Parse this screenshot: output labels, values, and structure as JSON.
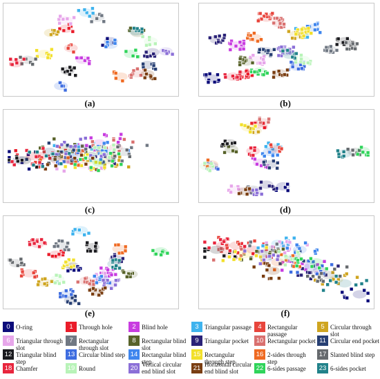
{
  "panels": [
    {
      "label": "(a)",
      "id": "a"
    },
    {
      "label": "(b)",
      "id": "b"
    },
    {
      "label": "(c)",
      "id": "c"
    },
    {
      "label": "(d)",
      "id": "d"
    },
    {
      "label": "(e)",
      "id": "e"
    },
    {
      "label": "(f)",
      "id": "f"
    }
  ],
  "legend": [
    {
      "id": "0",
      "label": "O-ring",
      "color": "#0c0c7a"
    },
    {
      "id": "1",
      "label": "Through hole",
      "color": "#ea1c2a"
    },
    {
      "id": "2",
      "label": "Blind hole",
      "color": "#c83ce0"
    },
    {
      "id": "3",
      "label": "Triangular passage",
      "color": "#3fb3ee"
    },
    {
      "id": "4",
      "label": "Rectangular passage",
      "color": "#e8453c"
    },
    {
      "id": "5",
      "label": "Circular through slot",
      "color": "#cfa520"
    },
    {
      "id": "6",
      "label": "Triangular through slot",
      "color": "#e7a6ea"
    },
    {
      "id": "7",
      "label": "Rectangular through slot",
      "color": "#707883"
    },
    {
      "id": "8",
      "label": "Rectangular blind slot",
      "color": "#58632a"
    },
    {
      "id": "9",
      "label": "Triangular pocket",
      "color": "#2a2277"
    },
    {
      "id": "10",
      "label": "Rectangular pocket",
      "color": "#d9706f"
    },
    {
      "id": "11",
      "label": "Circular end pocket",
      "color": "#273f73"
    },
    {
      "id": "12",
      "label": "Triangular blind step",
      "color": "#1b1b1f"
    },
    {
      "id": "13",
      "label": "Circular blind step",
      "color": "#3e6de0"
    },
    {
      "id": "14",
      "label": "Rectangular blind step",
      "color": "#3f86ee"
    },
    {
      "id": "15",
      "label": "Rectangular through step",
      "color": "#f2e02a"
    },
    {
      "id": "16",
      "label": "2-sides through step",
      "color": "#ef6a22"
    },
    {
      "id": "17",
      "label": "Slanted blind step",
      "color": "#666a6e"
    },
    {
      "id": "18",
      "label": "Chamfer",
      "color": "#e8253d"
    },
    {
      "id": "19",
      "label": "Round",
      "color": "#b8f3b8"
    },
    {
      "id": "20",
      "label": "Vertical  circular end blind slot",
      "color": "#8b6fd7"
    },
    {
      "id": "21",
      "label": "Horizontal circular end blind slot",
      "color": "#7a3e12"
    },
    {
      "id": "22",
      "label": "6-sides passage",
      "color": "#2fd45a"
    },
    {
      "id": "23",
      "label": "6-sides pocket",
      "color": "#21828a"
    }
  ],
  "chart_data": {
    "type": "scatter",
    "description_of_panels": "six 2-D embedding scatter plots, points colored by class 0–23",
    "panels": [
      {
        "label": "(a)",
        "clusters": [
          {
            "cls": 0,
            "x": 0.62,
            "y": 0.4,
            "n": 6
          },
          {
            "cls": 1,
            "x": 0.35,
            "y": 0.25,
            "n": 6
          },
          {
            "cls": 2,
            "x": 0.45,
            "y": 0.62,
            "n": 7
          },
          {
            "cls": 3,
            "x": 0.47,
            "y": 0.06,
            "n": 6
          },
          {
            "cls": 4,
            "x": 0.38,
            "y": 0.48,
            "n": 6
          },
          {
            "cls": 5,
            "x": 0.26,
            "y": 0.3,
            "n": 7
          },
          {
            "cls": 6,
            "x": 0.35,
            "y": 0.15,
            "n": 7
          },
          {
            "cls": 7,
            "x": 0.54,
            "y": 0.12,
            "n": 6
          },
          {
            "cls": 8,
            "x": 0.78,
            "y": 0.3,
            "n": 6
          },
          {
            "cls": 9,
            "x": 0.87,
            "y": 0.53,
            "n": 7
          },
          {
            "cls": 10,
            "x": 0.78,
            "y": 0.78,
            "n": 8
          },
          {
            "cls": 11,
            "x": 0.84,
            "y": 0.68,
            "n": 7
          },
          {
            "cls": 12,
            "x": 0.36,
            "y": 0.75,
            "n": 9
          },
          {
            "cls": 13,
            "x": 0.32,
            "y": 0.93,
            "n": 5
          },
          {
            "cls": 14,
            "x": 0.62,
            "y": 0.44,
            "n": 5
          },
          {
            "cls": 15,
            "x": 0.22,
            "y": 0.55,
            "n": 8
          },
          {
            "cls": 16,
            "x": 0.68,
            "y": 0.82,
            "n": 5
          },
          {
            "cls": 17,
            "x": 0.12,
            "y": 0.62,
            "n": 7
          },
          {
            "cls": 18,
            "x": 0.05,
            "y": 0.66,
            "n": 6
          },
          {
            "cls": 19,
            "x": 0.86,
            "y": 0.4,
            "n": 6
          },
          {
            "cls": 20,
            "x": 0.95,
            "y": 0.52,
            "n": 5
          },
          {
            "cls": 21,
            "x": 0.84,
            "y": 0.79,
            "n": 8
          },
          {
            "cls": 22,
            "x": 0.74,
            "y": 0.55,
            "n": 5
          },
          {
            "cls": 23,
            "x": 0.77,
            "y": 0.28,
            "n": 6
          }
        ]
      },
      {
        "label": "(b)",
        "clusters": [
          {
            "cls": 0,
            "x": 0.05,
            "y": 0.84,
            "n": 10
          },
          {
            "cls": 1,
            "x": 0.25,
            "y": 0.8,
            "n": 15
          },
          {
            "cls": 2,
            "x": 0.2,
            "y": 0.45,
            "n": 16
          },
          {
            "cls": 3,
            "x": 0.6,
            "y": 0.3,
            "n": 8
          },
          {
            "cls": 4,
            "x": 0.38,
            "y": 0.12,
            "n": 12
          },
          {
            "cls": 5,
            "x": 0.56,
            "y": 0.32,
            "n": 12
          },
          {
            "cls": 6,
            "x": 0.33,
            "y": 0.62,
            "n": 14
          },
          {
            "cls": 7,
            "x": 0.76,
            "y": 0.5,
            "n": 12
          },
          {
            "cls": 8,
            "x": 0.26,
            "y": 0.64,
            "n": 12
          },
          {
            "cls": 9,
            "x": 0.08,
            "y": 0.38,
            "n": 10
          },
          {
            "cls": 10,
            "x": 0.45,
            "y": 0.18,
            "n": 16
          },
          {
            "cls": 11,
            "x": 0.38,
            "y": 0.52,
            "n": 10
          },
          {
            "cls": 12,
            "x": 0.85,
            "y": 0.4,
            "n": 12
          },
          {
            "cls": 13,
            "x": 0.56,
            "y": 0.7,
            "n": 10
          },
          {
            "cls": 14,
            "x": 0.66,
            "y": 0.24,
            "n": 10
          },
          {
            "cls": 15,
            "x": 0.6,
            "y": 0.3,
            "n": 14
          },
          {
            "cls": 16,
            "x": 0.31,
            "y": 0.36,
            "n": 10
          },
          {
            "cls": 17,
            "x": 0.89,
            "y": 0.44,
            "n": 10
          },
          {
            "cls": 18,
            "x": 0.18,
            "y": 0.82,
            "n": 10
          },
          {
            "cls": 19,
            "x": 0.6,
            "y": 0.62,
            "n": 12
          },
          {
            "cls": 20,
            "x": 0.5,
            "y": 0.52,
            "n": 20
          },
          {
            "cls": 21,
            "x": 0.46,
            "y": 0.78,
            "n": 10
          },
          {
            "cls": 22,
            "x": 0.34,
            "y": 0.76,
            "n": 12
          },
          {
            "cls": 23,
            "x": 0.52,
            "y": 0.56,
            "n": 8
          }
        ]
      },
      {
        "label": "(c)",
        "clusters": [
          {
            "cls": 0,
            "x": 0.07,
            "y": 0.55,
            "n": 8
          },
          {
            "cls": 1,
            "x": 0.2,
            "y": 0.5,
            "n": 10
          },
          {
            "cls": 2,
            "x": 0.55,
            "y": 0.35,
            "n": 12
          },
          {
            "cls": 3,
            "x": 0.4,
            "y": 0.45,
            "n": 10
          },
          {
            "cls": 4,
            "x": 0.3,
            "y": 0.55,
            "n": 10
          },
          {
            "cls": 5,
            "x": 0.6,
            "y": 0.55,
            "n": 10
          },
          {
            "cls": 6,
            "x": 0.45,
            "y": 0.6,
            "n": 10
          },
          {
            "cls": 7,
            "x": 0.7,
            "y": 0.45,
            "n": 10
          },
          {
            "cls": 8,
            "x": 0.35,
            "y": 0.4,
            "n": 10
          },
          {
            "cls": 9,
            "x": 0.5,
            "y": 0.5,
            "n": 10
          },
          {
            "cls": 10,
            "x": 0.65,
            "y": 0.4,
            "n": 10
          },
          {
            "cls": 11,
            "x": 0.25,
            "y": 0.45,
            "n": 10
          },
          {
            "cls": 12,
            "x": 0.1,
            "y": 0.55,
            "n": 8
          },
          {
            "cls": 13,
            "x": 0.42,
            "y": 0.5,
            "n": 10
          },
          {
            "cls": 14,
            "x": 0.58,
            "y": 0.45,
            "n": 10
          },
          {
            "cls": 15,
            "x": 0.48,
            "y": 0.55,
            "n": 12
          },
          {
            "cls": 16,
            "x": 0.33,
            "y": 0.5,
            "n": 10
          },
          {
            "cls": 17,
            "x": 0.62,
            "y": 0.5,
            "n": 10
          },
          {
            "cls": 18,
            "x": 0.15,
            "y": 0.5,
            "n": 8
          },
          {
            "cls": 19,
            "x": 0.52,
            "y": 0.45,
            "n": 10
          },
          {
            "cls": 20,
            "x": 0.44,
            "y": 0.4,
            "n": 12
          },
          {
            "cls": 21,
            "x": 0.38,
            "y": 0.55,
            "n": 10
          },
          {
            "cls": 22,
            "x": 0.55,
            "y": 0.58,
            "n": 10
          },
          {
            "cls": 23,
            "x": 0.28,
            "y": 0.52,
            "n": 10
          }
        ]
      },
      {
        "label": "(d)",
        "clusters": [
          {
            "cls": 0,
            "x": 0.48,
            "y": 0.86,
            "n": 6
          },
          {
            "cls": 1,
            "x": 0.33,
            "y": 0.12,
            "n": 6
          },
          {
            "cls": 2,
            "x": 0.34,
            "y": 0.58,
            "n": 7
          },
          {
            "cls": 3,
            "x": 0.42,
            "y": 0.4,
            "n": 6
          },
          {
            "cls": 4,
            "x": 0.44,
            "y": 0.42,
            "n": 6
          },
          {
            "cls": 5,
            "x": 0.31,
            "y": 0.2,
            "n": 6
          },
          {
            "cls": 6,
            "x": 0.2,
            "y": 0.9,
            "n": 5
          },
          {
            "cls": 7,
            "x": 0.3,
            "y": 0.9,
            "n": 7
          },
          {
            "cls": 8,
            "x": 0.17,
            "y": 0.42,
            "n": 6
          },
          {
            "cls": 9,
            "x": 0.38,
            "y": 0.84,
            "n": 6
          },
          {
            "cls": 10,
            "x": 0.36,
            "y": 0.1,
            "n": 6
          },
          {
            "cls": 11,
            "x": 0.4,
            "y": 0.6,
            "n": 7
          },
          {
            "cls": 12,
            "x": 0.16,
            "y": 0.35,
            "n": 6
          },
          {
            "cls": 13,
            "x": 0.05,
            "y": 0.62,
            "n": 6
          },
          {
            "cls": 14,
            "x": 0.4,
            "y": 0.45,
            "n": 6
          },
          {
            "cls": 15,
            "x": 0.27,
            "y": 0.16,
            "n": 6
          },
          {
            "cls": 16,
            "x": 0.05,
            "y": 0.6,
            "n": 5
          },
          {
            "cls": 17,
            "x": 0.91,
            "y": 0.45,
            "n": 7
          },
          {
            "cls": 18,
            "x": 0.3,
            "y": 0.44,
            "n": 6
          },
          {
            "cls": 19,
            "x": 0.02,
            "y": 0.62,
            "n": 5
          },
          {
            "cls": 20,
            "x": 0.31,
            "y": 0.92,
            "n": 7
          },
          {
            "cls": 21,
            "x": 0.25,
            "y": 0.92,
            "n": 6
          },
          {
            "cls": 22,
            "x": 0.96,
            "y": 0.44,
            "n": 6
          },
          {
            "cls": 23,
            "x": 0.85,
            "y": 0.47,
            "n": 6
          }
        ]
      },
      {
        "label": "(e)",
        "clusters": [
          {
            "cls": 0,
            "x": 0.39,
            "y": 0.55,
            "n": 9
          },
          {
            "cls": 1,
            "x": 0.29,
            "y": 0.41,
            "n": 10
          },
          {
            "cls": 2,
            "x": 0.6,
            "y": 0.62,
            "n": 12
          },
          {
            "cls": 3,
            "x": 0.44,
            "y": 0.12,
            "n": 7
          },
          {
            "cls": 4,
            "x": 0.13,
            "y": 0.63,
            "n": 9
          },
          {
            "cls": 5,
            "x": 0.22,
            "y": 0.74,
            "n": 8
          },
          {
            "cls": 6,
            "x": 0.55,
            "y": 0.68,
            "n": 12
          },
          {
            "cls": 7,
            "x": 0.33,
            "y": 0.3,
            "n": 9
          },
          {
            "cls": 8,
            "x": 0.74,
            "y": 0.64,
            "n": 8
          },
          {
            "cls": 9,
            "x": 0.65,
            "y": 0.46,
            "n": 9
          },
          {
            "cls": 10,
            "x": 0.47,
            "y": 0.72,
            "n": 10
          },
          {
            "cls": 11,
            "x": 0.38,
            "y": 0.95,
            "n": 8
          },
          {
            "cls": 12,
            "x": 0.51,
            "y": 0.32,
            "n": 10
          },
          {
            "cls": 13,
            "x": 0.35,
            "y": 0.88,
            "n": 9
          },
          {
            "cls": 14,
            "x": 0.57,
            "y": 0.7,
            "n": 8
          },
          {
            "cls": 15,
            "x": 0.37,
            "y": 0.52,
            "n": 10
          },
          {
            "cls": 16,
            "x": 0.67,
            "y": 0.34,
            "n": 8
          },
          {
            "cls": 17,
            "x": 0.05,
            "y": 0.51,
            "n": 9
          },
          {
            "cls": 18,
            "x": 0.18,
            "y": 0.28,
            "n": 12
          },
          {
            "cls": 19,
            "x": 0.3,
            "y": 0.7,
            "n": 7
          },
          {
            "cls": 20,
            "x": 0.62,
            "y": 0.76,
            "n": 10
          },
          {
            "cls": 21,
            "x": 0.54,
            "y": 0.85,
            "n": 12
          },
          {
            "cls": 22,
            "x": 0.92,
            "y": 0.37,
            "n": 8
          },
          {
            "cls": 23,
            "x": 0.64,
            "y": 0.52,
            "n": 8
          }
        ]
      },
      {
        "label": "(f)",
        "clusters": [
          {
            "cls": 0,
            "x": 0.94,
            "y": 0.88,
            "n": 8
          },
          {
            "cls": 1,
            "x": 0.3,
            "y": 0.35,
            "n": 10
          },
          {
            "cls": 2,
            "x": 0.6,
            "y": 0.55,
            "n": 10
          },
          {
            "cls": 3,
            "x": 0.45,
            "y": 0.28,
            "n": 8
          },
          {
            "cls": 4,
            "x": 0.2,
            "y": 0.3,
            "n": 10
          },
          {
            "cls": 5,
            "x": 0.8,
            "y": 0.7,
            "n": 10
          },
          {
            "cls": 6,
            "x": 0.5,
            "y": 0.3,
            "n": 10
          },
          {
            "cls": 7,
            "x": 0.4,
            "y": 0.35,
            "n": 10
          },
          {
            "cls": 8,
            "x": 0.35,
            "y": 0.4,
            "n": 10
          },
          {
            "cls": 9,
            "x": 0.7,
            "y": 0.6,
            "n": 10
          },
          {
            "cls": 10,
            "x": 0.15,
            "y": 0.4,
            "n": 10
          },
          {
            "cls": 11,
            "x": 0.55,
            "y": 0.45,
            "n": 10
          },
          {
            "cls": 12,
            "x": 0.08,
            "y": 0.35,
            "n": 8
          },
          {
            "cls": 13,
            "x": 0.65,
            "y": 0.55,
            "n": 10
          },
          {
            "cls": 14,
            "x": 0.58,
            "y": 0.35,
            "n": 10
          },
          {
            "cls": 15,
            "x": 0.25,
            "y": 0.4,
            "n": 10
          },
          {
            "cls": 16,
            "x": 0.45,
            "y": 0.5,
            "n": 10
          },
          {
            "cls": 17,
            "x": 0.75,
            "y": 0.65,
            "n": 10
          },
          {
            "cls": 18,
            "x": 0.12,
            "y": 0.3,
            "n": 10
          },
          {
            "cls": 19,
            "x": 0.5,
            "y": 0.45,
            "n": 10
          },
          {
            "cls": 20,
            "x": 0.38,
            "y": 0.45,
            "n": 10
          },
          {
            "cls": 21,
            "x": 0.42,
            "y": 0.6,
            "n": 10
          },
          {
            "cls": 22,
            "x": 0.68,
            "y": 0.5,
            "n": 10
          },
          {
            "cls": 23,
            "x": 0.85,
            "y": 0.75,
            "n": 8
          }
        ]
      }
    ]
  }
}
